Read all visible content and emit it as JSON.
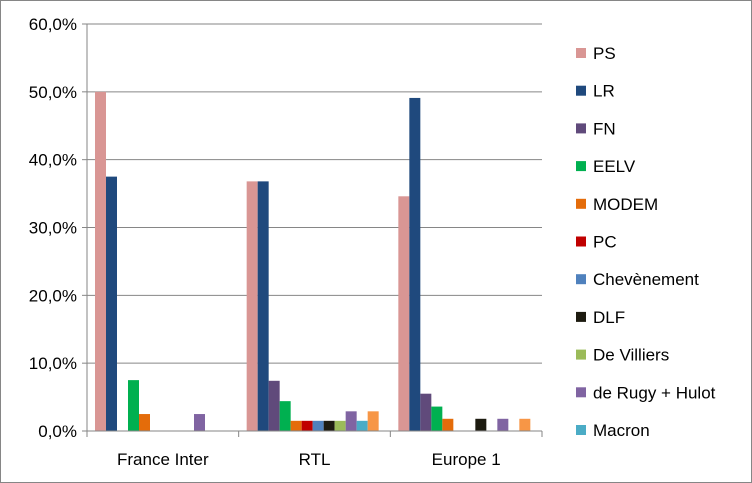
{
  "chart_data": {
    "type": "bar",
    "title": "",
    "xlabel": "",
    "ylabel": "",
    "ylim": [
      0,
      60
    ],
    "yticks": [
      "0,0%",
      "10,0%",
      "20,0%",
      "30,0%",
      "40,0%",
      "50,0%",
      "60,0%"
    ],
    "grid": true,
    "legend_position": "right",
    "categories": [
      "France Inter",
      "RTL",
      "Europe 1"
    ],
    "series": [
      {
        "name": "PS",
        "color": "#d99694",
        "values": [
          50.0,
          36.8,
          34.6
        ]
      },
      {
        "name": "LR",
        "color": "#1f497d",
        "values": [
          37.5,
          36.8,
          49.1
        ]
      },
      {
        "name": "FN",
        "color": "#604a7b",
        "values": [
          0,
          7.4,
          5.5
        ]
      },
      {
        "name": "EELV",
        "color": "#00b050",
        "values": [
          7.5,
          4.4,
          3.6
        ]
      },
      {
        "name": "MODEM",
        "color": "#e46c0a",
        "values": [
          2.5,
          1.5,
          1.8
        ]
      },
      {
        "name": "PC",
        "color": "#c00000",
        "values": [
          0,
          1.5,
          0
        ]
      },
      {
        "name": "Chevènement",
        "color": "#4f81bd",
        "values": [
          0,
          1.5,
          0
        ]
      },
      {
        "name": "DLF",
        "color": "#1d1b10",
        "values": [
          0,
          1.5,
          1.8
        ]
      },
      {
        "name": "De Villiers",
        "color": "#9bbb59",
        "values": [
          0,
          1.5,
          0
        ]
      },
      {
        "name": "de Rugy +  Hulot",
        "color": "#8064a2",
        "values": [
          2.5,
          2.9,
          1.8
        ]
      },
      {
        "name": "Macron",
        "color": "#4bacc6",
        "values": [
          0,
          1.5,
          0
        ]
      },
      {
        "name": "",
        "color": "#f79646",
        "values": [
          0,
          2.9,
          1.8
        ]
      }
    ]
  }
}
